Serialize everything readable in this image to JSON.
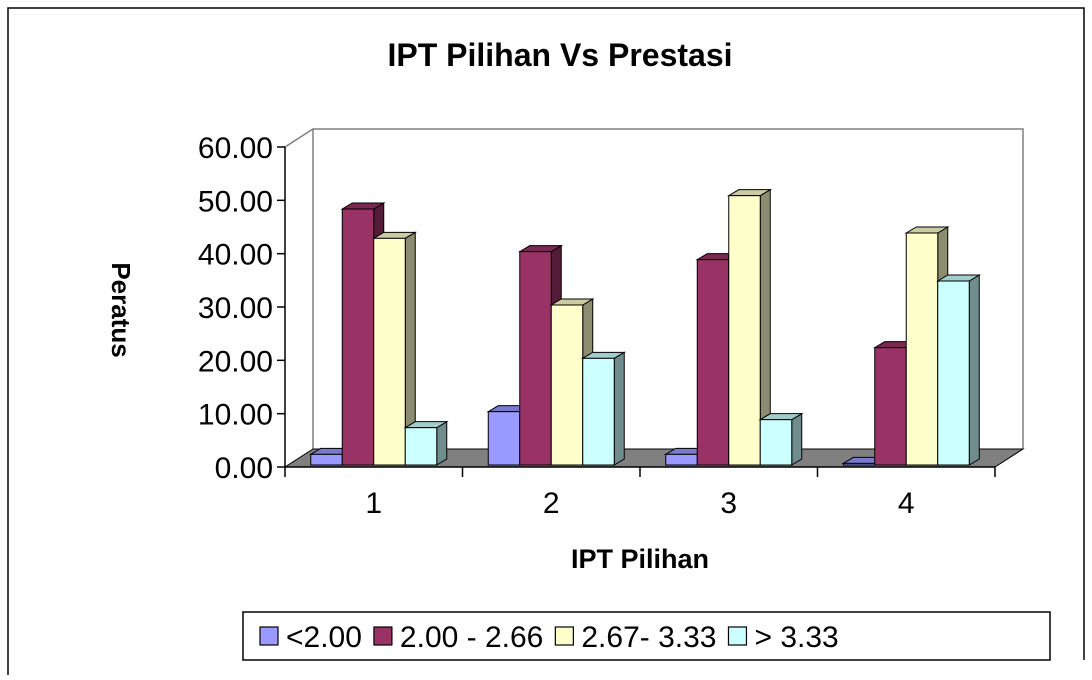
{
  "chart_data": {
    "type": "bar3d",
    "title": "IPT Pilihan Vs Prestasi",
    "x_label": "IPT Pilihan",
    "y_label": "Peratus",
    "categories": [
      "1",
      "2",
      "3",
      "4"
    ],
    "series": [
      {
        "name": "<2.00",
        "color": "#9999ff",
        "values": [
          2,
          10,
          2,
          0.3
        ]
      },
      {
        "name": "2.00 - 2.66",
        "color": "#993366",
        "values": [
          48,
          40,
          38.5,
          22
        ]
      },
      {
        "name": "2.67- 3.33",
        "color": "#ffffcc",
        "values": [
          42.5,
          30,
          50.5,
          43.5
        ]
      },
      {
        "name": "> 3.33",
        "color": "#ccffff",
        "values": [
          7,
          20,
          8.5,
          34.5
        ]
      }
    ],
    "ylim": [
      0,
      60
    ],
    "yticks": [
      {
        "value": 0,
        "label": "0.00"
      },
      {
        "value": 10,
        "label": "10.00"
      },
      {
        "value": 20,
        "label": "20.00"
      },
      {
        "value": 30,
        "label": "30.00"
      },
      {
        "value": 40,
        "label": "40.00"
      },
      {
        "value": 50,
        "label": "50.00"
      },
      {
        "value": 60,
        "label": "60.00"
      }
    ],
    "legend": "bottom"
  }
}
